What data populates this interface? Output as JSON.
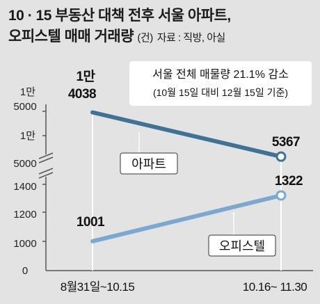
{
  "title": {
    "line1": "10 · 15 부동산 대책 전후 서울 아파트,",
    "line2": "오피스텔 매매 거래량",
    "unit": "(건)",
    "source": "자료 : 직방, 아실"
  },
  "note": {
    "line1": "서울 전체 매물량 21.1% 감소",
    "line2": "(10월 15일 대비 12월 15일 기준)"
  },
  "chart_data": {
    "type": "line",
    "x": [
      "8월31일~10.15",
      "10.16~ 11.30"
    ],
    "y_ticks": [
      "0",
      "1000",
      "1200",
      "1400",
      "1만 5000",
      "1만 5000"
    ],
    "y_tick_labels": {
      "t0": "0",
      "t1000": "1000",
      "t1200": "1200",
      "t1400": "1400",
      "t_man_a_top": "1만",
      "t_man_a_bot": "5000",
      "t_man_b_top": "1만",
      "t_man_b_bot": "5000"
    },
    "axis_break": true,
    "series": [
      {
        "name": "아파트",
        "values": [
          14038,
          5367
        ],
        "labels": [
          "1만\n4038",
          "5367"
        ],
        "label_top": "1만",
        "label_bottom": "4038",
        "label_end": "5367",
        "color": "#3f7396"
      },
      {
        "name": "오피스텔",
        "values": [
          1001,
          1322
        ],
        "label_start": "1001",
        "label_end": "1322",
        "color": "#7aa8d0"
      }
    ]
  }
}
